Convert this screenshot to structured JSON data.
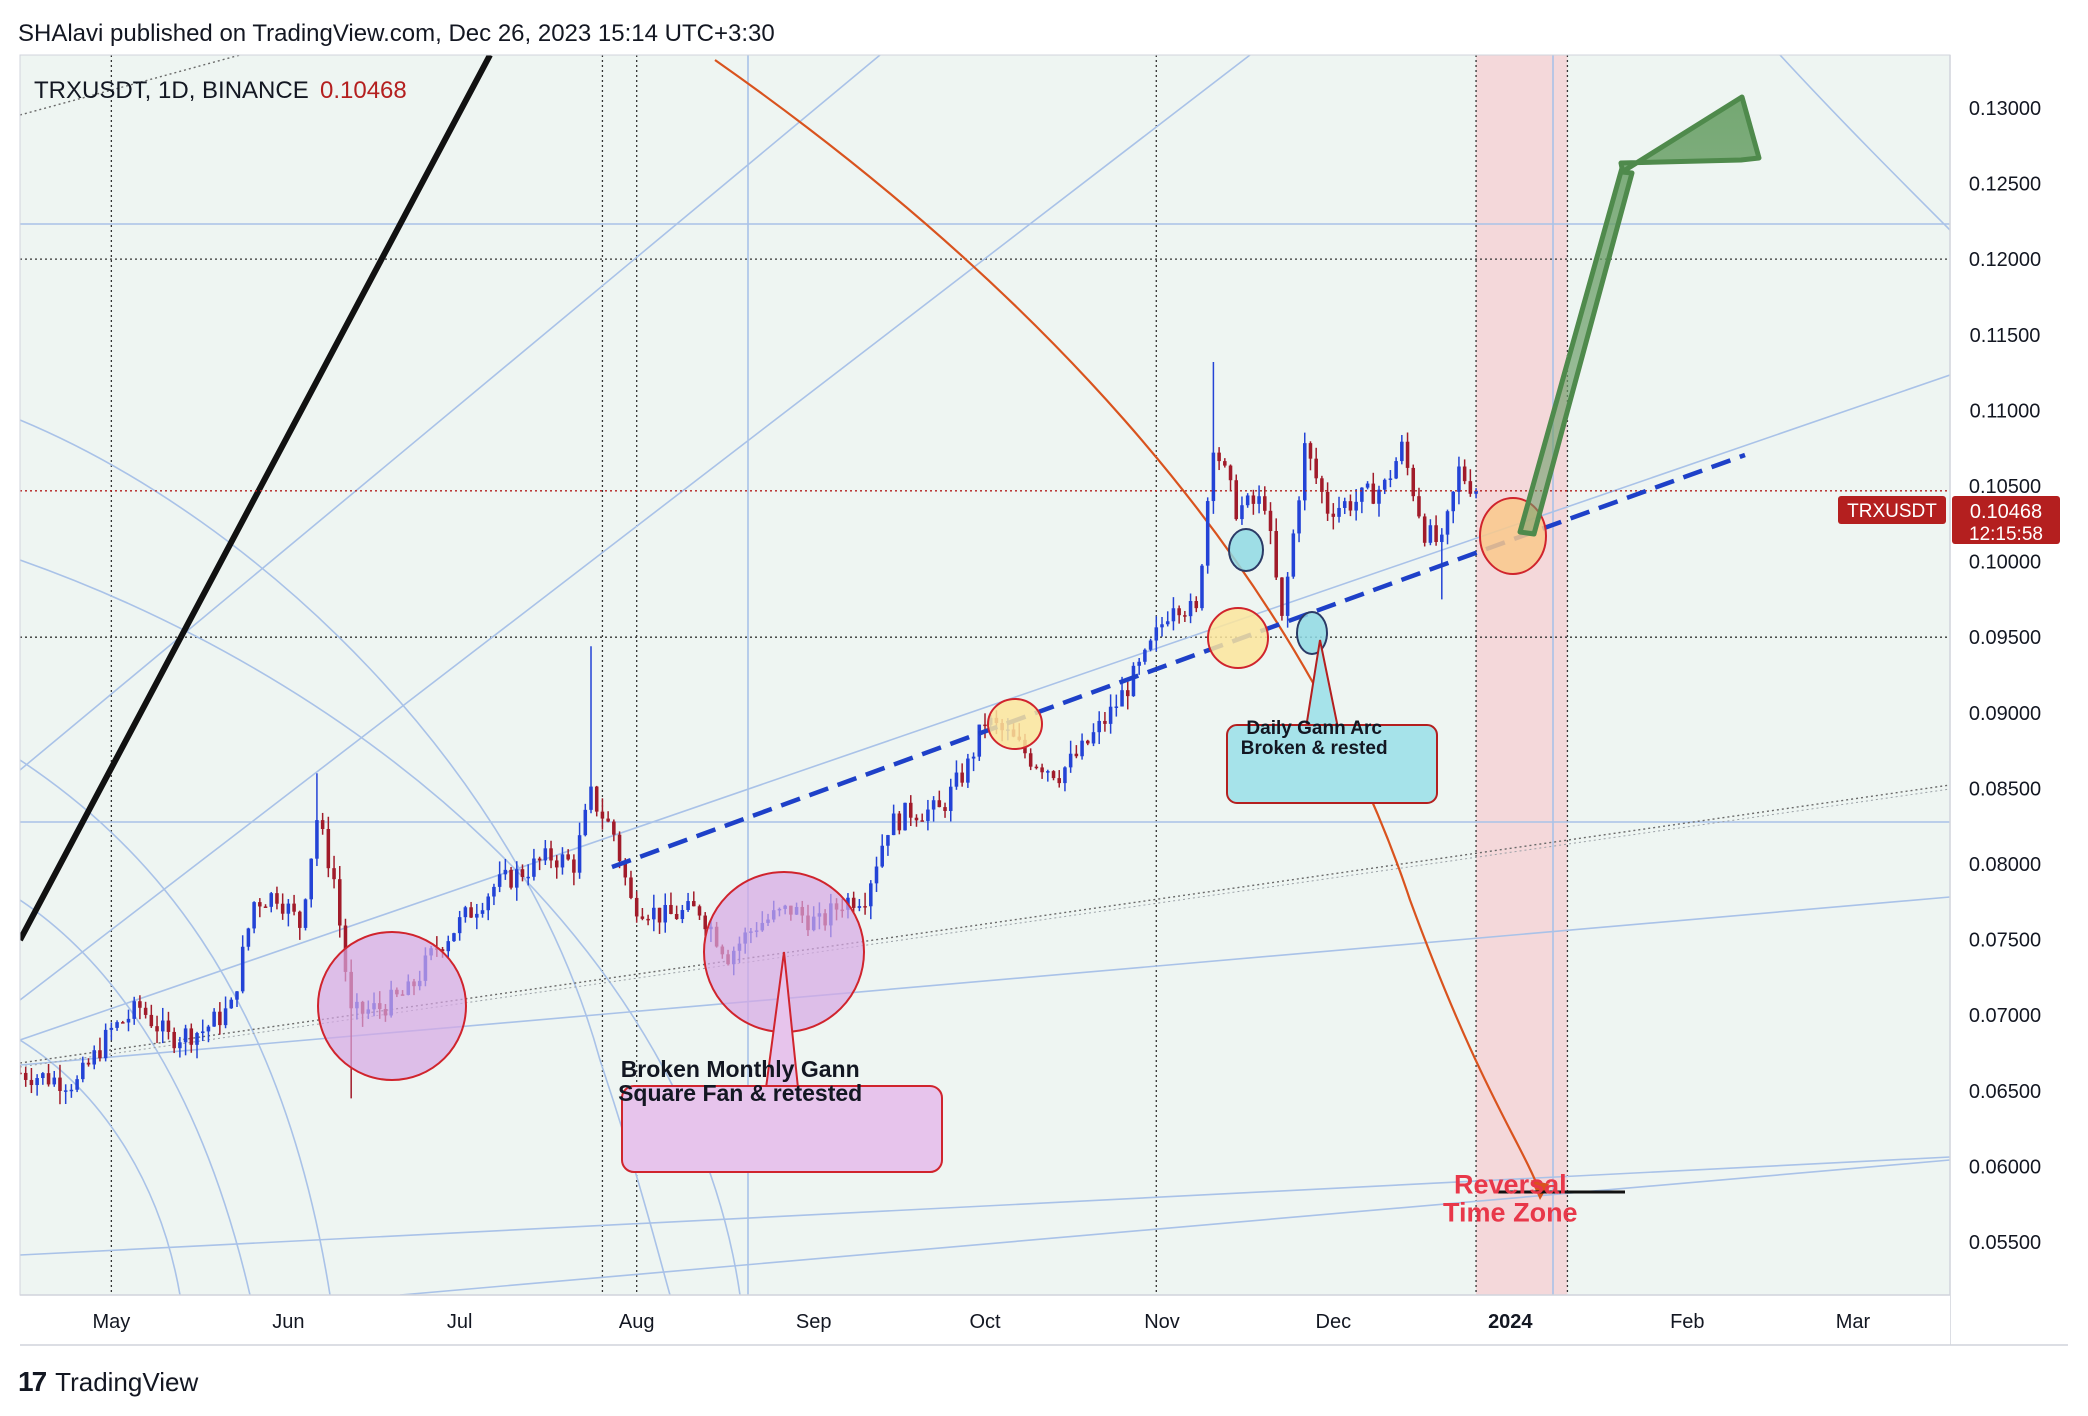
{
  "header": {
    "published": "SHAlavi published on TradingView.com, Dec 26, 2023 15:14 UTC+3:30"
  },
  "footer": {
    "logo": "17",
    "brand": "TradingView"
  },
  "colors": {
    "up": "#2343d6",
    "down": "#a11b2a",
    "plot_bg": "#eef5f2",
    "time_zone": "#f4d8da",
    "price_badge": "#b41f1f"
  },
  "chart_data": {
    "type": "candlestick",
    "symbol": "TRXUSDT",
    "interval": "1D",
    "exchange": "BINANCE",
    "last_price": "0.10468",
    "countdown": "12:15:58",
    "price_axis_label": "TRXUSDT",
    "y_ticks": [
      "0.13000",
      "0.12500",
      "0.12000",
      "0.11500",
      "0.11000",
      "0.10500",
      "0.10000",
      "0.09500",
      "0.09000",
      "0.08500",
      "0.08000",
      "0.07500",
      "0.07000",
      "0.06500",
      "0.06000",
      "0.05500"
    ],
    "x_ticks": [
      "May",
      "Jun",
      "Jul",
      "Aug",
      "Sep",
      "Oct",
      "Nov",
      "Dec",
      "2024",
      "Feb",
      "Mar"
    ],
    "ylim": [
      0.0515,
      0.1335
    ],
    "xlim": [
      "2023-04-15",
      "2024-03-18"
    ],
    "horizontal_levels": [
      0.12,
      0.095
    ],
    "path": [
      [
        "2023-04-15",
        0.0662
      ],
      [
        "2023-04-25",
        0.0655
      ],
      [
        "2023-05-01",
        0.069
      ],
      [
        "2023-05-06",
        0.0705
      ],
      [
        "2023-05-11",
        0.0685
      ],
      [
        "2023-05-17",
        0.069
      ],
      [
        "2023-05-22",
        0.0705
      ],
      [
        "2023-05-26",
        0.0775
      ],
      [
        "2023-05-30",
        0.078
      ],
      [
        "2023-06-03",
        0.076
      ],
      [
        "2023-06-06",
        0.083
      ],
      [
        "2023-06-09",
        0.079
      ],
      [
        "2023-06-12",
        0.07
      ],
      [
        "2023-06-17",
        0.0705
      ],
      [
        "2023-06-22",
        0.0715
      ],
      [
        "2023-06-27",
        0.0745
      ],
      [
        "2023-07-02",
        0.0765
      ],
      [
        "2023-07-07",
        0.0785
      ],
      [
        "2023-07-12",
        0.0795
      ],
      [
        "2023-07-17",
        0.0805
      ],
      [
        "2023-07-21",
        0.08
      ],
      [
        "2023-07-24",
        0.0845
      ],
      [
        "2023-07-28",
        0.082
      ],
      [
        "2023-07-31",
        0.0775
      ],
      [
        "2023-08-06",
        0.0765
      ],
      [
        "2023-08-12",
        0.077
      ],
      [
        "2023-08-17",
        0.074
      ],
      [
        "2023-08-22",
        0.076
      ],
      [
        "2023-08-28",
        0.077
      ],
      [
        "2023-09-02",
        0.076
      ],
      [
        "2023-09-06",
        0.0775
      ],
      [
        "2023-09-10",
        0.078
      ],
      [
        "2023-09-14",
        0.0825
      ],
      [
        "2023-09-18",
        0.0835
      ],
      [
        "2023-09-23",
        0.0835
      ],
      [
        "2023-09-28",
        0.0865
      ],
      [
        "2023-10-01",
        0.0895
      ],
      [
        "2023-10-05",
        0.0885
      ],
      [
        "2023-10-09",
        0.087
      ],
      [
        "2023-10-14",
        0.086
      ],
      [
        "2023-10-18",
        0.0875
      ],
      [
        "2023-10-23",
        0.09
      ],
      [
        "2023-10-29",
        0.0935
      ],
      [
        "2023-11-03",
        0.0975
      ],
      [
        "2023-11-07",
        0.0965
      ],
      [
        "2023-11-10",
        0.108
      ],
      [
        "2023-11-14",
        0.1035
      ],
      [
        "2023-11-19",
        0.104
      ],
      [
        "2023-11-22",
        0.096
      ],
      [
        "2023-11-26",
        0.1075
      ],
      [
        "2023-11-30",
        0.1035
      ],
      [
        "2023-12-05",
        0.104
      ],
      [
        "2023-12-10",
        0.105
      ],
      [
        "2023-12-13",
        0.1075
      ],
      [
        "2023-12-17",
        0.102
      ],
      [
        "2023-12-20",
        0.101
      ],
      [
        "2023-12-23",
        0.106
      ],
      [
        "2023-12-26",
        0.10468
      ]
    ],
    "spikes": [
      [
        "2023-06-06",
        0.0825,
        0.086
      ],
      [
        "2023-06-12",
        0.07,
        0.0645
      ],
      [
        "2023-07-24",
        0.085,
        0.0944
      ],
      [
        "2023-11-10",
        0.108,
        0.1132
      ],
      [
        "2023-12-20",
        0.101,
        0.0975
      ]
    ],
    "annotations": [
      {
        "text": [
          "Broken Monthly Gann",
          "Square  Fan & retested"
        ],
        "date": "2023-08-20",
        "price": 0.0659
      },
      {
        "text": [
          "Daily Gann Arc",
          "Broken & rested"
        ],
        "date": "2023-11-28",
        "price": 0.0886
      },
      {
        "text": [
          "Reversal",
          "Time Zone"
        ],
        "date": "2024-01-01",
        "price": 0.0582
      }
    ],
    "time_zone": [
      "2023-12-26",
      "2024-01-11"
    ]
  }
}
